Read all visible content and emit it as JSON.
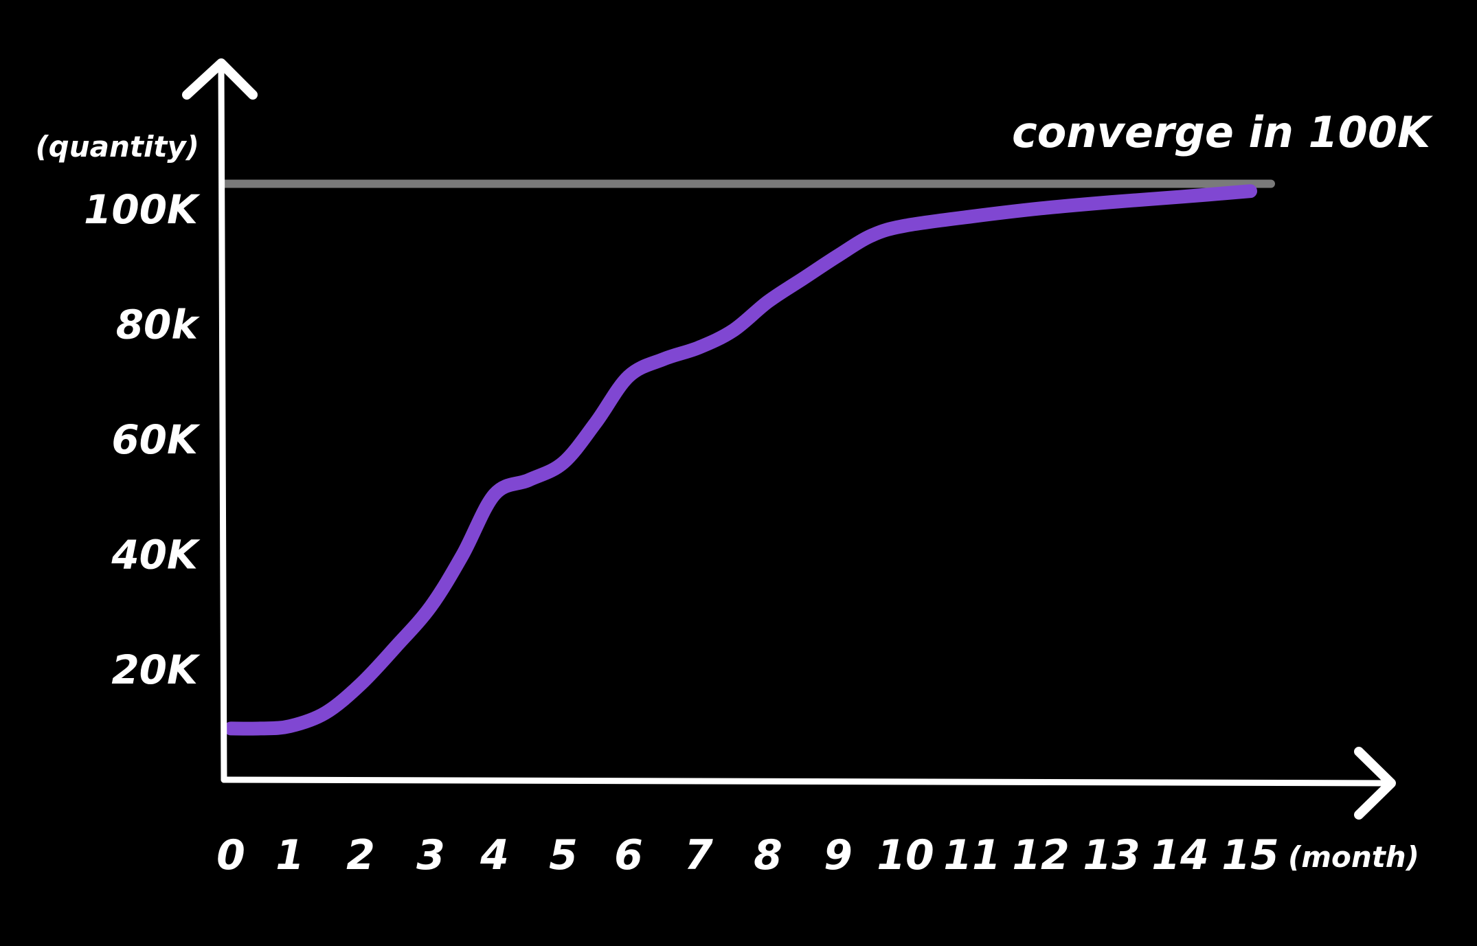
{
  "chart_data": {
    "type": "line",
    "title": "",
    "ylabel": "(quantity)",
    "xlabel": "(month)",
    "x_ticks": [
      "0",
      "1",
      "2",
      "3",
      "4",
      "5",
      "6",
      "7",
      "8",
      "9",
      "10",
      "11",
      "12",
      "13",
      "14",
      "15"
    ],
    "y_ticks": [
      {
        "value": 20000,
        "label": "20K"
      },
      {
        "value": 40000,
        "label": "40K"
      },
      {
        "value": 60000,
        "label": "60K"
      },
      {
        "value": 80000,
        "label": "80k"
      },
      {
        "value": 100000,
        "label": "100K"
      }
    ],
    "xlim": [
      0,
      15
    ],
    "ylim": [
      0,
      100000
    ],
    "grid": false,
    "reference_line": {
      "value": 104000,
      "color": "#7a7a7a"
    },
    "annotation": "converge in 100K",
    "series": [
      {
        "color": "#8047d2",
        "x": [
          0,
          0.5,
          1,
          1.5,
          2,
          2.5,
          3,
          3.5,
          4,
          4.5,
          5,
          5.5,
          6,
          6.5,
          7,
          7.5,
          8,
          8.5,
          9,
          9.5,
          10,
          11,
          12,
          13,
          14,
          15
        ],
        "y": [
          9800,
          9800,
          10200,
          12500,
          17500,
          24000,
          31000,
          40000,
          50500,
          53000,
          56000,
          63000,
          71000,
          74000,
          76000,
          79000,
          84000,
          88000,
          92000,
          95500,
          97200,
          98800,
          100200,
          101300,
          102200,
          103200
        ]
      }
    ]
  }
}
